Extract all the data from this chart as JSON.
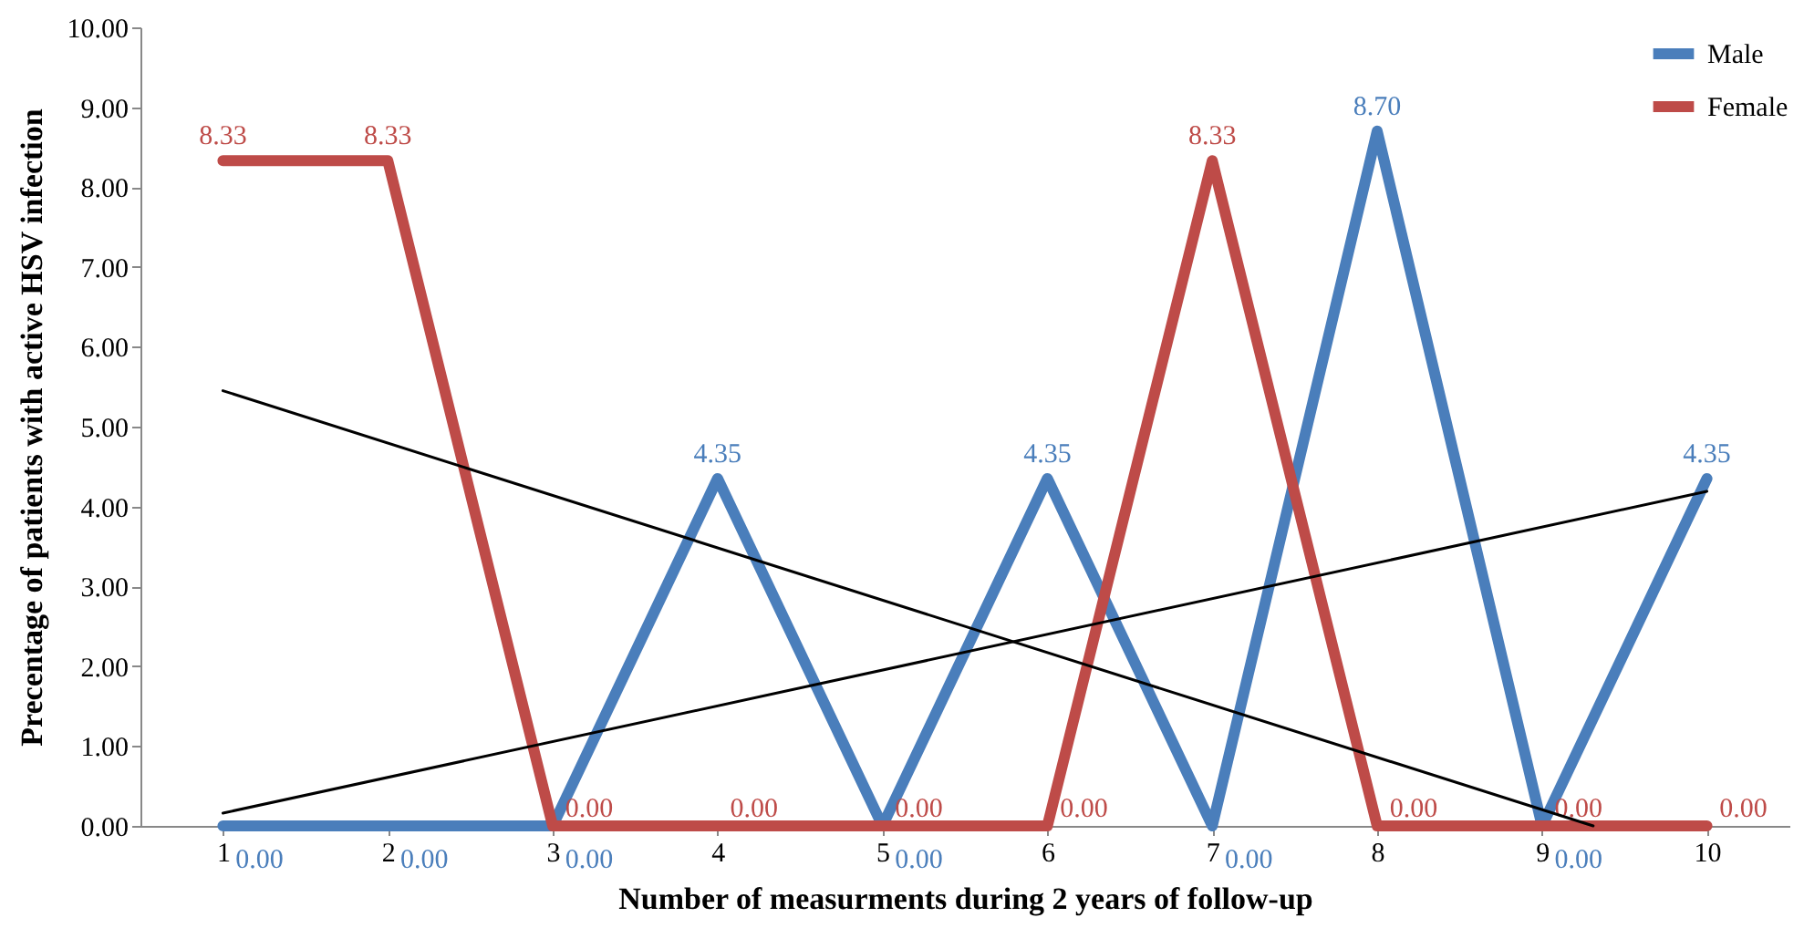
{
  "chart_data": {
    "type": "line",
    "xlabel": "Number of measurments during 2 years of follow-up",
    "ylabel": "Precentage of patients with active HSV infection",
    "x": [
      1,
      2,
      3,
      4,
      5,
      6,
      7,
      8,
      9,
      10
    ],
    "series": [
      {
        "name": "Male",
        "color": "#4a7ebb",
        "values": [
          0,
          0,
          0,
          4.35,
          0,
          4.35,
          0,
          8.7,
          0,
          4.35
        ],
        "value_labels": [
          "0.00",
          "0.00",
          "0.00",
          "4.35",
          "0.00",
          "4.35",
          "0.00",
          "8.70",
          "0.00",
          "4.35"
        ]
      },
      {
        "name": "Female",
        "color": "#be4b48",
        "values": [
          8.33,
          8.33,
          0,
          0,
          0,
          0,
          8.33,
          0,
          0,
          0
        ],
        "value_labels": [
          "8.33",
          "8.33",
          "0.00",
          "0.00",
          "0.00",
          "0.00",
          "8.33",
          "0.00",
          "0.00",
          "0.00"
        ]
      },
      {
        "color": "#000000",
        "x": [
          1,
          10
        ],
        "values": [
          0.16,
          4.19
        ]
      },
      {
        "color": "#000000",
        "x": [
          1,
          9.31
        ],
        "values": [
          5.45,
          0
        ]
      }
    ],
    "xlim": [
      0.5,
      10.5
    ],
    "xticks": [
      1,
      2,
      3,
      4,
      5,
      6,
      7,
      8,
      9,
      10
    ],
    "ylim": [
      0,
      10
    ],
    "yticks": [
      {
        "value": 0,
        "label": "0.00"
      },
      {
        "value": 1,
        "label": "1.00"
      },
      {
        "value": 2,
        "label": "2.00"
      },
      {
        "value": 3,
        "label": "3.00"
      },
      {
        "value": 4,
        "label": "4.00"
      },
      {
        "value": 5,
        "label": "5.00"
      },
      {
        "value": 6,
        "label": "6.00"
      },
      {
        "value": 7,
        "label": "7.00"
      },
      {
        "value": 8,
        "label": "8.00"
      },
      {
        "value": 9,
        "label": "9.00"
      },
      {
        "value": 10,
        "label": "10.00"
      }
    ],
    "grid": false,
    "legend": "top right",
    "marker": "none",
    "line_style": "solid"
  }
}
